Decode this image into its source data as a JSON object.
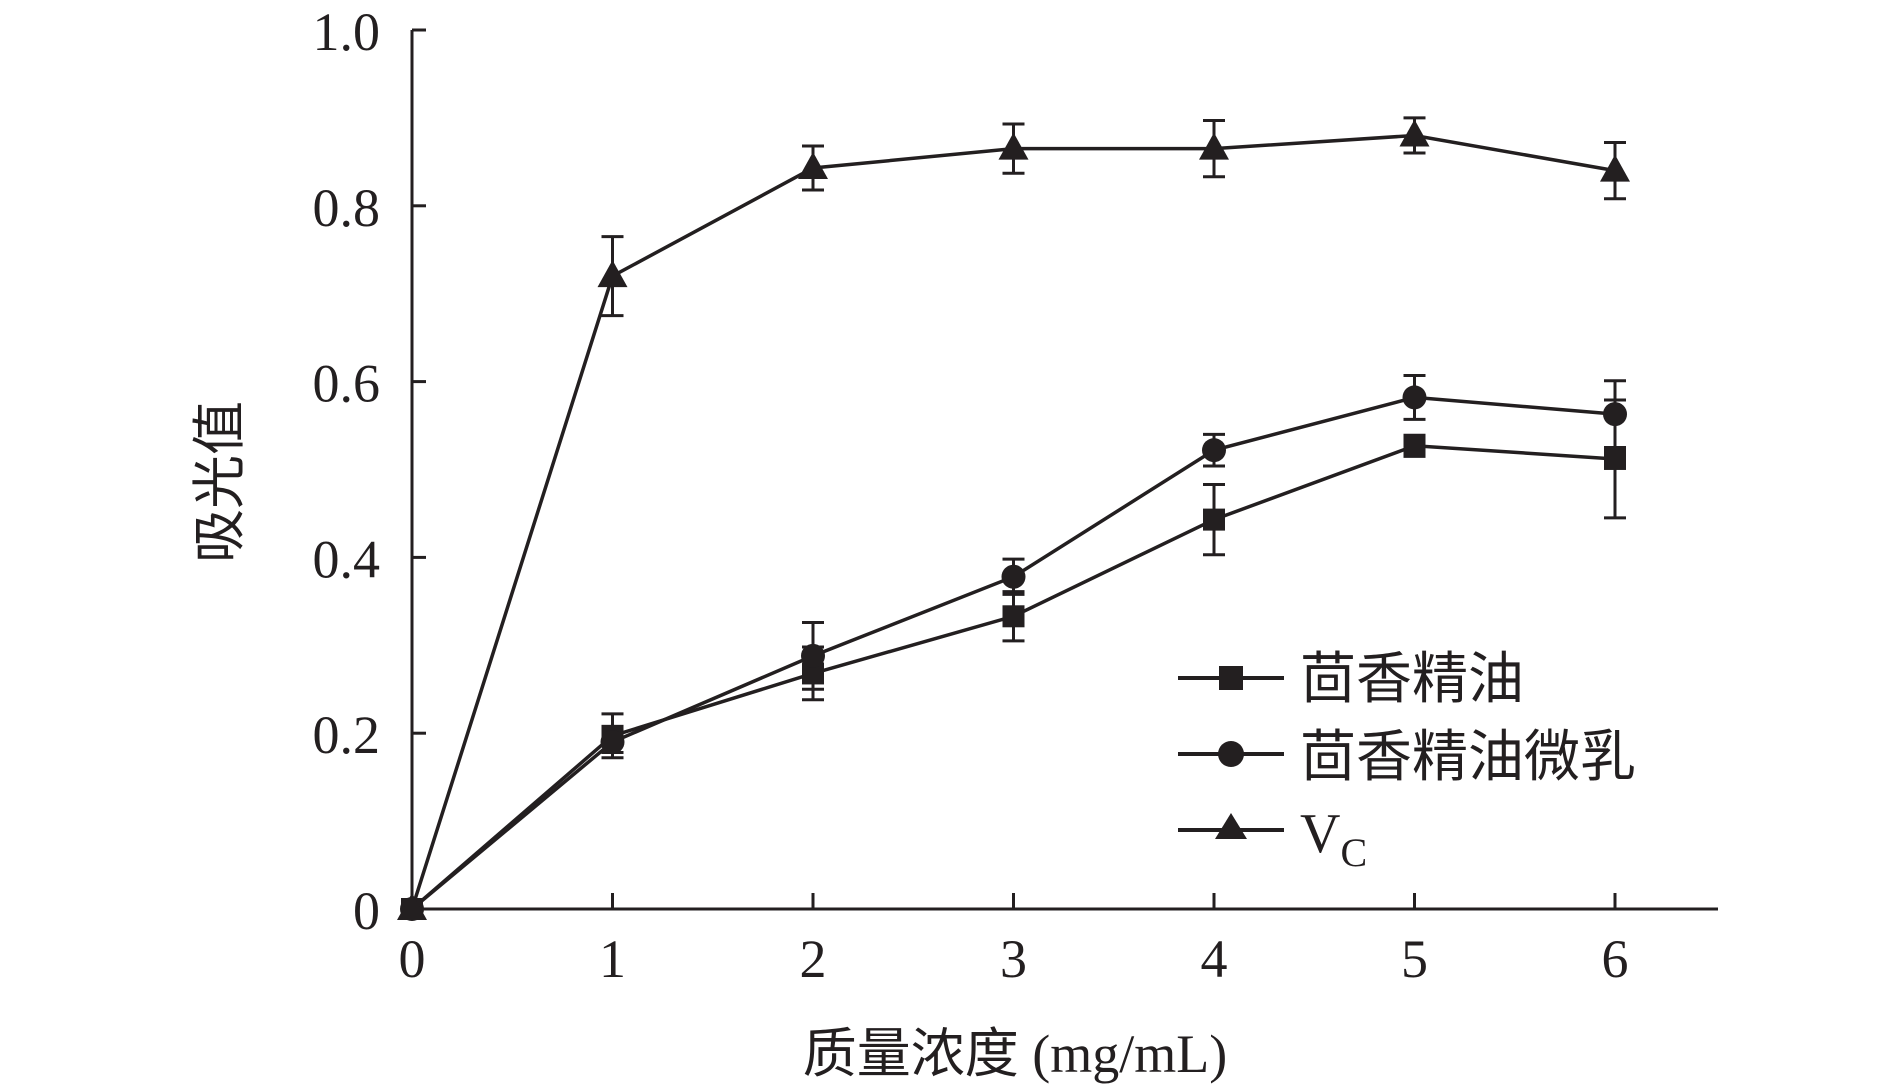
{
  "chart_data": {
    "type": "line",
    "title": "",
    "xlabel": "质量浓度 (mg/mL)",
    "ylabel": "吸光值",
    "x": [
      0,
      1,
      2,
      3,
      4,
      5,
      6
    ],
    "xlim": [
      0,
      6.5
    ],
    "ylim": [
      0,
      1.0
    ],
    "xticks": [
      "0",
      "1",
      "2",
      "3",
      "4",
      "5",
      "6"
    ],
    "yticks": [
      "0",
      "0.2",
      "0.4",
      "0.6",
      "0.8",
      "1.0"
    ],
    "ytick_values": [
      0,
      0.2,
      0.4,
      0.6,
      0.8,
      1.0
    ],
    "grid": false,
    "legend_position": "bottom-right",
    "series": [
      {
        "name": "茴香精油",
        "marker": "square",
        "values": [
          0,
          0.197,
          0.268,
          0.333,
          0.443,
          0.527,
          0.512
        ],
        "errors": [
          0,
          0.025,
          0.03,
          0.028,
          0.04,
          0.012,
          0.067
        ]
      },
      {
        "name": "茴香精油微乳",
        "marker": "circle",
        "values": [
          0,
          0.19,
          0.288,
          0.378,
          0.522,
          0.582,
          0.563
        ],
        "errors": [
          0,
          0.012,
          0.038,
          0.02,
          0.018,
          0.025,
          0.038
        ]
      },
      {
        "name": "V",
        "name_subscript": "C",
        "marker": "triangle",
        "values": [
          0,
          0.72,
          0.843,
          0.865,
          0.865,
          0.88,
          0.84
        ],
        "errors": [
          0,
          0.045,
          0.025,
          0.028,
          0.032,
          0.02,
          0.032
        ]
      }
    ],
    "color": "#231f20"
  }
}
